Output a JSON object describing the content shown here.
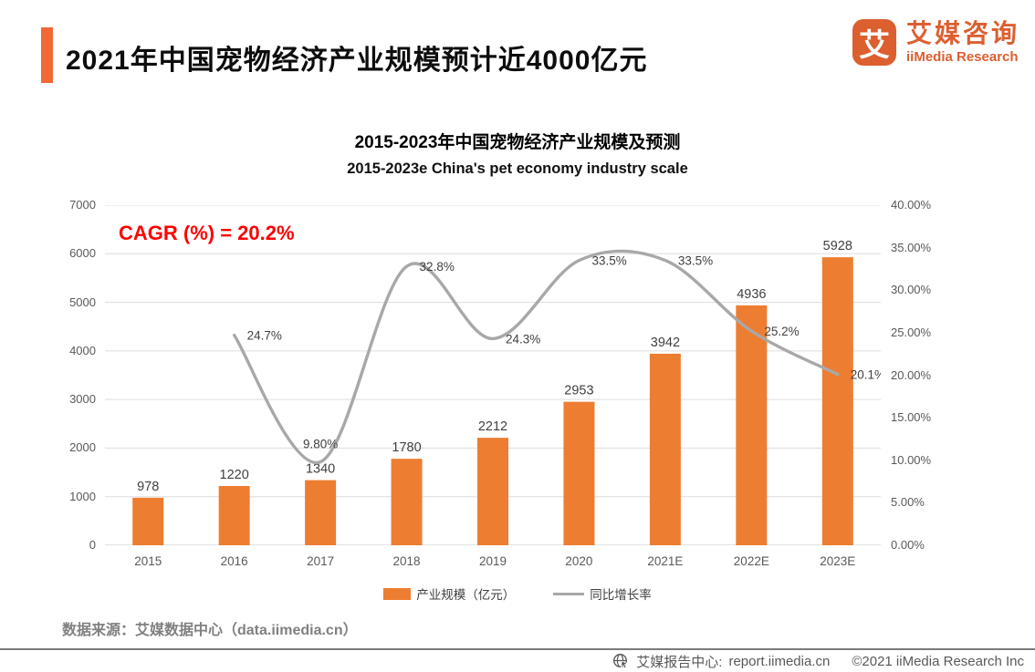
{
  "header": {
    "title": "2021年中国宠物经济产业规模预计近4000亿元",
    "logo": {
      "icon_glyph": "艾",
      "name_cn": "艾媒咨询",
      "name_en": "iiMedia Research",
      "brand_color": "#DC5F30"
    }
  },
  "chart": {
    "title_cn": "2015-2023年中国宠物经济产业规模及预测",
    "title_en": "2015-2023e China's pet economy industry scale",
    "annotation": "CAGR (%) = 20.2%",
    "annotation_color": "#FF0000"
  },
  "chart_data": {
    "type": "bar",
    "categories": [
      "2015",
      "2016",
      "2017",
      "2018",
      "2019",
      "2020",
      "2021E",
      "2022E",
      "2023E"
    ],
    "series": [
      {
        "name": "产业规模（亿元）",
        "type": "bar",
        "axis": "left",
        "color": "#ED7D31",
        "values": [
          978,
          1220,
          1340,
          1780,
          2212,
          2953,
          3942,
          4936,
          5928
        ]
      },
      {
        "name": "同比增长率",
        "type": "line",
        "axis": "right",
        "color": "#A8A8A8",
        "values": [
          null,
          24.7,
          9.8,
          32.8,
          24.3,
          33.5,
          33.5,
          25.2,
          20.1
        ],
        "point_labels": [
          null,
          "24.7%",
          "9.80%",
          "32.8%",
          "24.3%",
          "33.5%",
          "33.5%",
          "25.2%",
          "20.1%"
        ]
      }
    ],
    "left_axis": {
      "min": 0,
      "max": 7000,
      "step": 1000,
      "ticks": [
        "7000",
        "6000",
        "5000",
        "4000",
        "3000",
        "2000",
        "1000",
        "0"
      ]
    },
    "right_axis": {
      "min": 0,
      "max": 40,
      "step": 5,
      "ticks": [
        "40.00%",
        "35.00%",
        "30.00%",
        "25.00%",
        "20.00%",
        "15.00%",
        "10.00%",
        "5.00%",
        "0.00%"
      ]
    },
    "grid": true,
    "gridline_color": "#DDDDDD",
    "baseline_color": "#C6C6C6",
    "legend_position": "bottom"
  },
  "source": "数据来源：艾媒数据中心（data.iimedia.cn）",
  "footer": {
    "site_label": "艾媒报告中心:",
    "site_url": "report.iimedia.cn",
    "copyright": "©2021  iiMedia Research Inc"
  }
}
